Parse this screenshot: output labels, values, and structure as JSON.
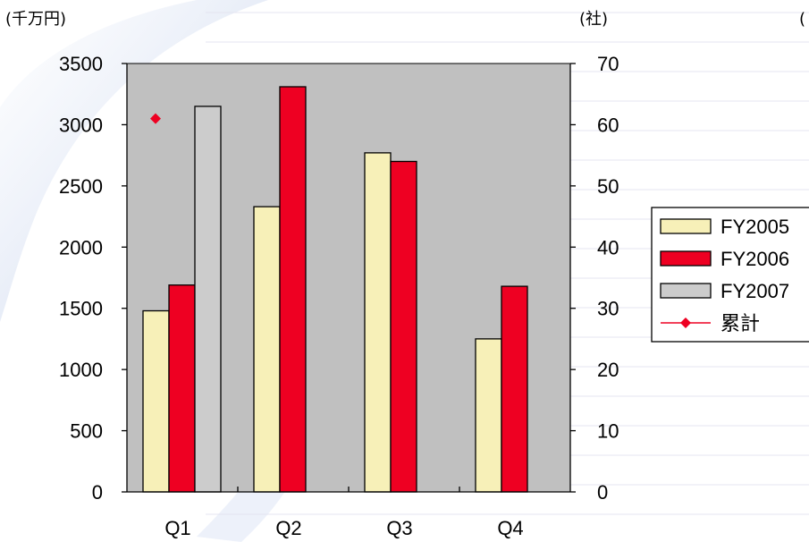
{
  "chart_data": {
    "type": "bar",
    "categories": [
      "Q1",
      "Q2",
      "Q3",
      "Q4"
    ],
    "y_left": {
      "unit_label": "(千万円)",
      "ylim": [
        0,
        3500
      ],
      "ticks": [
        0,
        500,
        1000,
        1500,
        2000,
        2500,
        3000,
        3500
      ]
    },
    "y_right": {
      "unit_label": "(社)",
      "ylim": [
        0,
        70
      ],
      "ticks": [
        0,
        10,
        20,
        30,
        40,
        50,
        60,
        70
      ]
    },
    "series": [
      {
        "name": "FY2005",
        "color": "#f7f0b8",
        "values": [
          1480,
          2330,
          2770,
          1250
        ]
      },
      {
        "name": "FY2006",
        "color": "#ee0022",
        "values": [
          1690,
          3310,
          2700,
          1680
        ]
      },
      {
        "name": "FY2007",
        "color": "#cccccc",
        "values": [
          3150,
          null,
          null,
          null
        ]
      }
    ],
    "line_series": [
      {
        "name": "累計",
        "color": "#ee0022",
        "axis": "right",
        "marker": "diamond",
        "values": [
          61,
          null,
          null,
          null
        ]
      }
    ],
    "plot_background": "#c0c0c0",
    "grid": false,
    "legend_position": "right"
  },
  "clipped_unit_label": "("
}
